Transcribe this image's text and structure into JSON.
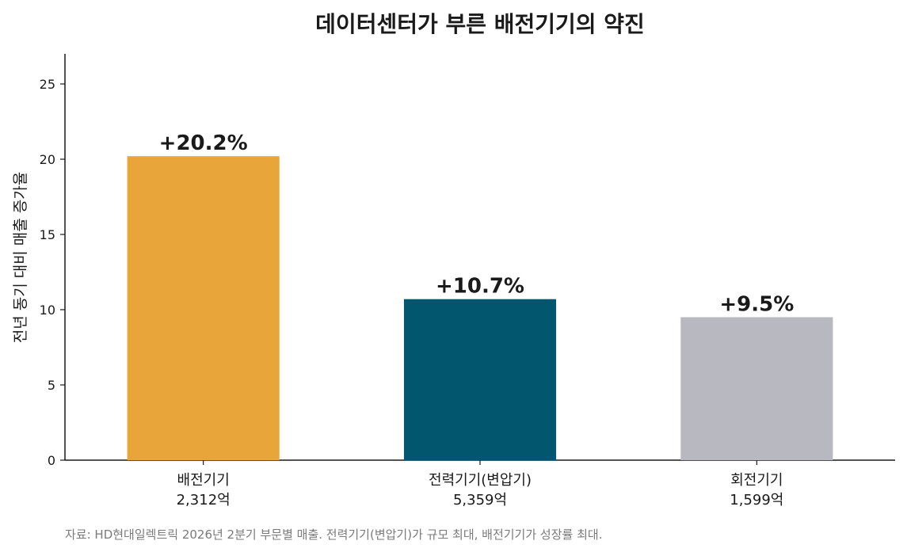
{
  "chart_data": {
    "type": "bar",
    "title": "데이터센터가 부른 배전기기의 약진",
    "ylabel": "전년 동기 대비 매출 증가율",
    "xlabel": "",
    "ylim": [
      0,
      27
    ],
    "yticks": [
      0,
      5,
      10,
      15,
      20,
      25
    ],
    "categories": [
      {
        "name": "배전기기",
        "sub": "2,312억"
      },
      {
        "name": "전력기기(변압기)",
        "sub": "5,359억"
      },
      {
        "name": "회전기기",
        "sub": "1,599억"
      }
    ],
    "values": [
      20.2,
      10.7,
      9.5
    ],
    "data_labels": [
      "+20.2%",
      "+10.7%",
      "+9.5%"
    ],
    "colors": [
      "#E8A53A",
      "#02566E",
      "#B8B8C0"
    ],
    "grid": false
  },
  "source": "자료: HD현대일렉트릭 2026년 2분기 부문별 매출. 전력기기(변압기)가 규모 최대, 배전기기가 성장률 최대."
}
